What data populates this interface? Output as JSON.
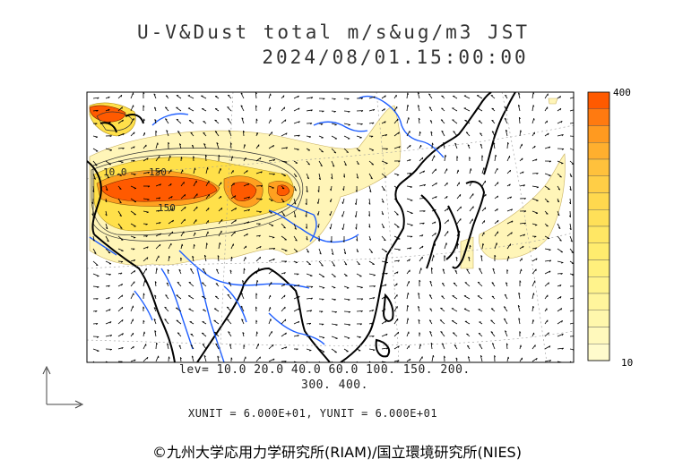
{
  "header": {
    "title_line1": "U-V&Dust total m/s&ug/m3 JST",
    "title_line2": "2024/08/01.15:00:00"
  },
  "colorbar": {
    "max_label": "400",
    "min_label": "10",
    "colors": [
      "#ff5a00",
      "#ff7a10",
      "#ff9a20",
      "#ffaf2e",
      "#ffc13c",
      "#ffce46",
      "#ffd84e",
      "#ffe058",
      "#ffe764",
      "#ffec6e",
      "#fff07c",
      "#fff38c",
      "#fff59c",
      "#fff7ac",
      "#fff9bc",
      "#fffbcc"
    ]
  },
  "map_labels": {
    "contour_a": "10.0",
    "contour_b": "150",
    "contour_c": "150"
  },
  "legend": {
    "levels_line1": "lev= 10.0 20.0 40.0 60.0 100. 150. 200.",
    "levels_line2": "300. 400.",
    "units": "XUNIT = 6.000E+01, YUNIT = 6.000E+01"
  },
  "credit": "©九州大学応用力学研究所(RIAM)/国立環境研究所(NIES)",
  "colors": {
    "coast": "#000000",
    "river": "#1f5fff",
    "dust_low": "#fff5b0",
    "dust_mid": "#ffe040",
    "dust_high": "#ff5a00"
  }
}
